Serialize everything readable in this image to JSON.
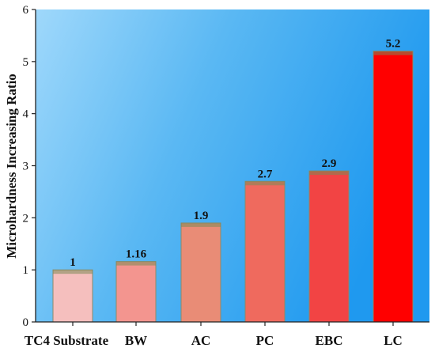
{
  "chart_data": {
    "type": "bar",
    "categories": [
      "TC4 Substrate",
      "BW",
      "AC",
      "PC",
      "EBC",
      "LC"
    ],
    "values": [
      1,
      1.16,
      1.9,
      2.7,
      2.9,
      5.2
    ],
    "data_labels": [
      "1",
      "1.16",
      "1.9",
      "2.7",
      "2.9",
      "5.2"
    ],
    "bar_colors": [
      "#f5bfbe",
      "#f3958f",
      "#e98c76",
      "#ef6a5e",
      "#f24444",
      "#ff0000"
    ],
    "title": "",
    "xlabel": "",
    "ylabel": "Microhardness Increasing Ratio",
    "ylim": [
      0,
      6
    ],
    "yticks": [
      "0",
      "1",
      "2",
      "3",
      "4",
      "5",
      "6"
    ],
    "grid": false,
    "background": "blue gradient"
  }
}
